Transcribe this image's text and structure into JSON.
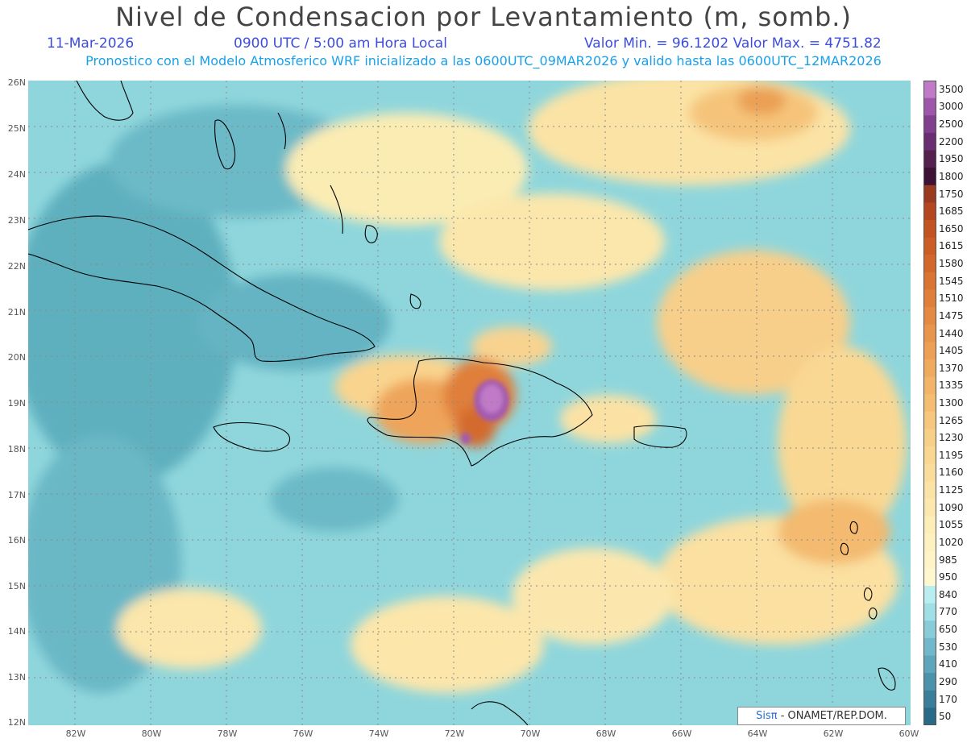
{
  "header": {
    "title": "Nivel de Condensacion por Levantamiento (m, somb.)",
    "date": "11-Mar-2026",
    "time": "0900 UTC / 5:00 am Hora Local",
    "minmax": "Valor Min. = 96.1202  Valor Max. = 4751.82",
    "model_line": "Pronostico con el Modelo Atmosferico WRF inicializado a las 0600UTC_09MAR2026 y valido hasta las  0600UTC_12MAR2026"
  },
  "axes": {
    "lat_labels": [
      "26N",
      "25N",
      "24N",
      "23N",
      "22N",
      "21N",
      "20N",
      "19N",
      "18N",
      "17N",
      "16N",
      "15N",
      "14N",
      "13N",
      "12N"
    ],
    "lon_labels": [
      "82W",
      "80W",
      "78W",
      "76W",
      "74W",
      "72W",
      "70W",
      "68W",
      "66W",
      "64W",
      "62W",
      "60W"
    ]
  },
  "colorbar": {
    "labels": [
      "3500",
      "3000",
      "2500",
      "2200",
      "1950",
      "1800",
      "1750",
      "1685",
      "1650",
      "1615",
      "1580",
      "1545",
      "1510",
      "1475",
      "1440",
      "1405",
      "1370",
      "1335",
      "1300",
      "1265",
      "1230",
      "1195",
      "1160",
      "1125",
      "1090",
      "1055",
      "1020",
      "985",
      "950",
      "840",
      "770",
      "650",
      "530",
      "410",
      "290",
      "170",
      "50"
    ],
    "colors": [
      "#c07ac8",
      "#9d56a9",
      "#813f8e",
      "#6a2f72",
      "#55224f",
      "#3e1234",
      "#9a3a20",
      "#b4471f",
      "#c45322",
      "#cc5d26",
      "#d3682c",
      "#d97433",
      "#df7f3a",
      "#e48a42",
      "#e8964b",
      "#ec9f55",
      "#efaa5e",
      "#f2b468",
      "#f4bd72",
      "#f6c77d",
      "#f8cf87",
      "#f9d791",
      "#fadd9b",
      "#fbe3a5",
      "#fce8ae",
      "#fdedb7",
      "#fef1c0",
      "#fff4c8",
      "#fff7cf",
      "#b8eef0",
      "#a0dfe6",
      "#87ccd8",
      "#71b9ca",
      "#5ea6bb",
      "#4c92ab",
      "#3b7e9a",
      "#2a6a89"
    ]
  },
  "credit": {
    "sis": "Sisπ",
    "rest": " - ONAMET/REP.DOM."
  }
}
